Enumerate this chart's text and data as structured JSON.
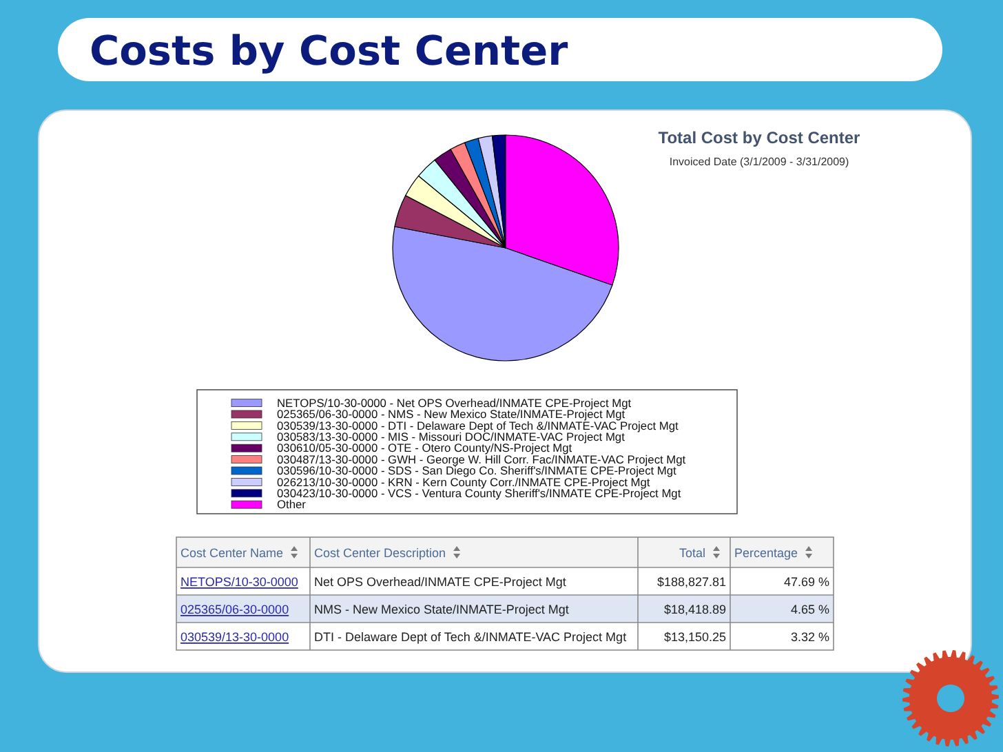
{
  "chart_data": [
    {
      "type": "pie",
      "title": "Total Cost by Cost Center",
      "subtitle": "Invoiced Date (3/1/2009 - 3/31/2009)",
      "annotations": [
        "Costs by Cost Center"
      ],
      "categories": [
        "NETOPS/10-30-0000 - Net OPS Overhead/INMATE CPE-Project Mgt",
        "025365/06-30-0000 - NMS - New Mexico State/INMATE-Project Mgt",
        "030539/13-30-0000 - DTI - Delaware Dept of Tech &/INMATE-VAC Project Mgt",
        "030583/13-30-0000 - MIS - Missouri DOC/INMATE-VAC Project Mgt",
        "030610/05-30-0000 - OTE - Otero County/NS-Project Mgt",
        "030487/13-30-0000 - GWH - George W. Hill Corr. Fac/INMATE-VAC Project Mgt",
        "030596/10-30-0000 - SDS - San Diego Co. Sheriff's/INMATE CPE-Project Mgt",
        "026213/10-30-0000 - KRN - Kern County Corr./INMATE CPE-Project Mgt",
        "030423/10-30-0000 - VCS - Ventura County Sheriff's/INMATE CPE-Project Mgt",
        "Other"
      ],
      "values": [
        47.69,
        4.65,
        3.32,
        3.2,
        2.7,
        2.2,
        2.0,
        2.0,
        1.9,
        30.34
      ],
      "colors": [
        "#9999ff",
        "#993366",
        "#ffffcc",
        "#ccffff",
        "#660066",
        "#ff8080",
        "#0066cc",
        "#ccccff",
        "#000080",
        "#ff00ff"
      ],
      "legend": "bottom"
    },
    {
      "type": "other",
      "categories": [
        "Cost Center Name",
        "Cost Center Description",
        "Total",
        "Percentage"
      ],
      "cell_labels": [
        [
          "NETOPS/10-30-0000",
          "Net OPS Overhead/INMATE CPE-Project Mgt",
          "$188,827.81",
          "47.69 %"
        ],
        [
          "025365/06-30-0000",
          "NMS - New Mexico State/INMATE-Project Mgt",
          "$18,418.89",
          "4.65 %"
        ],
        [
          "030539/13-30-0000",
          "DTI - Delaware Dept of Tech &/INMATE-VAC Project Mgt",
          "$13,150.25",
          "3.32 %"
        ]
      ]
    }
  ]
}
